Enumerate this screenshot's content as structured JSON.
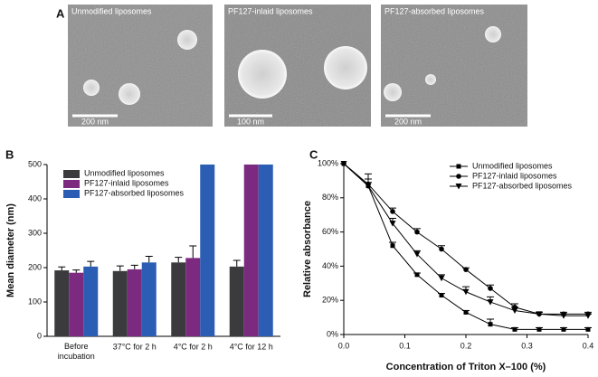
{
  "panel_a": {
    "label": "A",
    "images": [
      {
        "caption": "Unmodified liposomes",
        "scale": "200 nm"
      },
      {
        "caption": "PF127-inlaid liposomes",
        "scale": "100 nm"
      },
      {
        "caption": "PF127-absorbed liposomes",
        "scale": "200 nm"
      }
    ]
  },
  "chart_data": [
    {
      "type": "bar",
      "label": "B",
      "ylabel": "Mean diameter (nm)",
      "categories": [
        "Before incubation",
        "37°C for 2 h",
        "4°C for 2 h",
        "4°C for 12 h"
      ],
      "series": [
        {
          "name": "Unmodified liposomes",
          "color": "#3b3b3d",
          "values": [
            192,
            190,
            215,
            203
          ],
          "errors": [
            10,
            15,
            15,
            18
          ]
        },
        {
          "name": "PF127-inlaid liposomes",
          "color": "#7b2a80",
          "values": [
            185,
            195,
            228,
            500
          ],
          "errors": [
            8,
            12,
            35,
            null
          ]
        },
        {
          "name": "PF127-absorbed liposomes",
          "color": "#2a5db3",
          "values": [
            203,
            215,
            500,
            500
          ],
          "errors": [
            15,
            18,
            null,
            null
          ]
        }
      ],
      "ylim": [
        0,
        500
      ],
      "yticks": [
        0,
        100,
        200,
        300,
        400,
        500
      ],
      "legend": "upper left"
    },
    {
      "type": "line",
      "label": "C",
      "xlabel": "Concentration of Triton X–100 (%)",
      "ylabel": "Relative absorbance",
      "x": [
        0,
        0.04,
        0.08,
        0.12,
        0.16,
        0.2,
        0.24,
        0.28,
        0.32,
        0.36,
        0.4
      ],
      "series": [
        {
          "name": "Unmodified liposomes",
          "color": "#000000",
          "marker": "square",
          "values": [
            100,
            87,
            52,
            35,
            23,
            13,
            6,
            3,
            3,
            3,
            3
          ],
          "errors": [
            0,
            2,
            2,
            1,
            1,
            1,
            3,
            1,
            1,
            1,
            1
          ]
        },
        {
          "name": "PF127-inlaid liposomes",
          "color": "#000000",
          "marker": "circle",
          "values": [
            100,
            88,
            72,
            60,
            50,
            38,
            27,
            16,
            12,
            12,
            12
          ],
          "errors": [
            0,
            3,
            2,
            2,
            2,
            1,
            2,
            2,
            1,
            1,
            1
          ]
        },
        {
          "name": "PF127-absorbed liposomes",
          "color": "#000000",
          "marker": "triangle-down",
          "values": [
            100,
            87,
            65,
            47,
            33,
            25,
            19,
            14,
            12,
            11,
            11
          ],
          "errors": [
            0,
            7,
            3,
            2,
            2,
            3,
            3,
            2,
            1,
            1,
            1
          ]
        }
      ],
      "xlim": [
        0,
        0.4
      ],
      "xticks": [
        {
          "value": 0,
          "label": "0.0"
        },
        0.1,
        0.2,
        0.3,
        0.4
      ],
      "ylim": [
        0,
        100
      ],
      "yticks": [
        {
          "value": 0,
          "label": "0%"
        },
        {
          "value": 20,
          "label": "20%"
        },
        {
          "value": 40,
          "label": "40%"
        },
        {
          "value": 60,
          "label": "60%"
        },
        {
          "value": 80,
          "label": "80%"
        },
        {
          "value": 100,
          "label": "100%"
        }
      ],
      "legend": "upper right"
    }
  ]
}
